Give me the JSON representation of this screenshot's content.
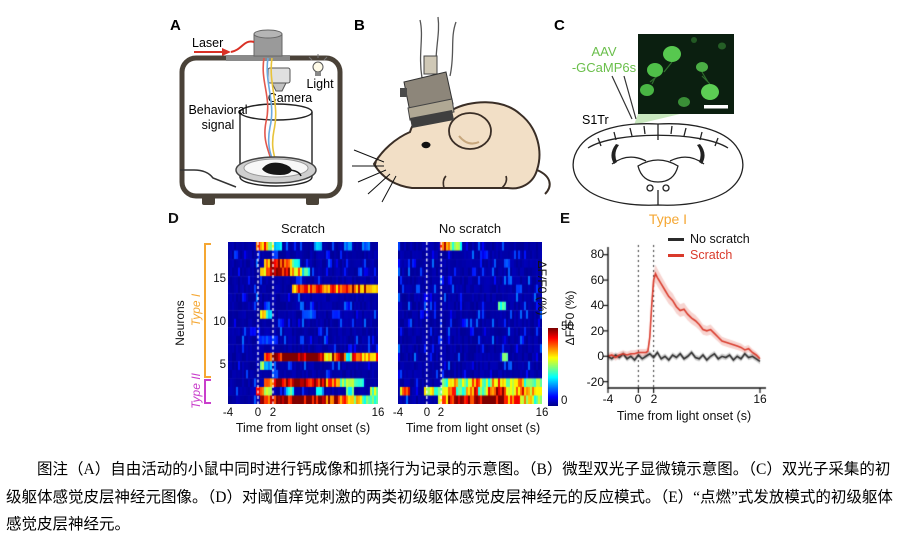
{
  "figure": {
    "panel_a": {
      "label": "A",
      "laser": "Laser",
      "light": "Light",
      "camera": "Camera",
      "behavioral_signal_line1": "Behavioral",
      "behavioral_signal_line2": "signal"
    },
    "panel_b": {
      "label": "B"
    },
    "panel_c": {
      "label": "C",
      "aav_line1": "AAV",
      "aav_line2": "-GCaMP6s",
      "region": "S1Tr"
    },
    "panel_d": {
      "label": "D"
    },
    "panel_e": {
      "label": "E"
    },
    "caption": "图注（A）自由活动的小鼠中同时进行钙成像和抓挠行为记录的示意图。（B）微型双光子显微镜示意图。（C）双光子采集的初级躯体感觉皮层神经元图像。（D）对阈值痒觉刺激的两类初级躯体感觉皮层神经元的反应模式。（E）“点燃”式发放模式的初级躯体感觉皮层神经元。"
  },
  "colors": {
    "type1_orange": "#F5A733",
    "type2_magenta": "#C93ECB",
    "scratch_red": "#D93A2B",
    "no_scratch_black": "#2B2B2B",
    "gcamp_green": "#6ABF4B",
    "laser_red": "#D93025",
    "heatmap_background_blue": "#00008F"
  },
  "chart_data": [
    {
      "type": "heatmap",
      "title": "Scratch",
      "xlabel": "Time from light onset (s)",
      "ylabel": "Neurons",
      "x_range": [
        -4,
        16
      ],
      "x_ticks": [
        -4,
        0,
        2,
        16
      ],
      "y_ticks": [
        15,
        10,
        5
      ],
      "n_rows": 19,
      "base": 2,
      "onset_lines": [
        0,
        2
      ],
      "colorbar": {
        "label": "ΔF/F0 (%)",
        "max": 50,
        "min": 0
      },
      "groups": [
        {
          "name": "Type I",
          "color": "#F5A733",
          "row_span": [
            4,
            19
          ]
        },
        {
          "name": "Type II",
          "color": "#C93ECB",
          "row_span": [
            1,
            3
          ]
        }
      ],
      "rows": [
        [
          [
            -0.2,
            1.2,
            40
          ],
          [
            1.2,
            2.2,
            28
          ],
          [
            2.2,
            3.2,
            16
          ],
          [
            7.5,
            8.5,
            14
          ],
          [
            11.5,
            12.5,
            13
          ],
          [
            14,
            15,
            12
          ]
        ],
        [
          [
            -3.2,
            -2.6,
            8
          ],
          [
            2,
            2.6,
            9
          ],
          [
            9,
            9.6,
            8
          ]
        ],
        [
          [
            0.8,
            1.6,
            32
          ],
          [
            1.6,
            3.4,
            46
          ],
          [
            3.4,
            4.6,
            38
          ],
          [
            4.6,
            5.6,
            22
          ]
        ],
        [
          [
            0.3,
            1.2,
            38
          ],
          [
            1.2,
            2.6,
            50
          ],
          [
            2.6,
            4.2,
            44
          ],
          [
            4.2,
            5.8,
            34
          ],
          [
            5.8,
            7,
            20
          ]
        ],
        [
          [
            5,
            5.5,
            8
          ]
        ],
        [
          [
            4.6,
            6.5,
            38
          ],
          [
            6.5,
            9,
            44
          ],
          [
            9,
            11,
            40
          ],
          [
            11,
            13,
            46
          ],
          [
            13,
            15,
            40
          ],
          [
            15,
            16,
            30
          ]
        ],
        [
          [
            -2,
            -1.5,
            7
          ]
        ],
        [
          [
            1,
            1.6,
            10
          ],
          [
            7,
            7.5,
            8
          ]
        ],
        [
          [
            0.3,
            1.1,
            30
          ],
          [
            1.1,
            1.9,
            20
          ],
          [
            6,
            7.5,
            10
          ],
          [
            10,
            11,
            9
          ]
        ],
        [
          [
            3,
            3.5,
            7
          ]
        ],
        [
          [
            -1,
            -0.5,
            7
          ],
          [
            8,
            8.6,
            9
          ]
        ],
        [
          [
            0,
            2.8,
            9
          ],
          [
            5.5,
            6.2,
            8
          ]
        ],
        [
          [
            12,
            12.6,
            7
          ]
        ],
        [
          [
            0.8,
            1.8,
            36
          ],
          [
            1.8,
            8.8,
            50
          ],
          [
            8.8,
            9.8,
            28
          ],
          [
            9.8,
            11.8,
            46
          ],
          [
            11.8,
            12.6,
            22
          ],
          [
            12.6,
            13.8,
            48
          ],
          [
            13.8,
            16,
            36
          ]
        ],
        [
          [
            0.2,
            0.9,
            26
          ],
          [
            0.9,
            1.8,
            14
          ],
          [
            4,
            4.6,
            10
          ]
        ],
        [
          [
            1.8,
            2.8,
            12
          ],
          [
            9,
            9.6,
            8
          ]
        ],
        [
          [
            0.9,
            2.4,
            40
          ],
          [
            2.4,
            9,
            50
          ],
          [
            9,
            11,
            36
          ],
          [
            11,
            13,
            26
          ],
          [
            13,
            14.2,
            18
          ]
        ],
        [
          [
            -0.2,
            0.9,
            36
          ],
          [
            0.9,
            2,
            28
          ],
          [
            3.8,
            4.8,
            20
          ],
          [
            7.8,
            8.8,
            16
          ],
          [
            11.8,
            12.8,
            22
          ],
          [
            14.8,
            16,
            26
          ]
        ],
        [
          [
            0.4,
            1.9,
            42
          ],
          [
            1.9,
            9.2,
            50
          ],
          [
            9.2,
            12,
            42
          ],
          [
            12,
            14,
            30
          ],
          [
            14,
            16,
            22
          ]
        ]
      ]
    },
    {
      "type": "heatmap",
      "title": "No scratch",
      "xlabel": "Time from light onset (s)",
      "x_range": [
        -4,
        16
      ],
      "x_ticks": [
        -4,
        0,
        2,
        16
      ],
      "n_rows": 19,
      "base": 2,
      "onset_lines": [
        0,
        2
      ],
      "rows": [
        [
          [
            1.8,
            3.2,
            40
          ],
          [
            3.2,
            4.8,
            24
          ]
        ],
        [
          [
            8,
            8.5,
            8
          ]
        ],
        [
          [
            -2,
            -1.5,
            7
          ],
          [
            11,
            11.6,
            9
          ]
        ],
        [],
        [
          [
            3,
            3.5,
            7
          ]
        ],
        [
          [
            12.5,
            13.2,
            10
          ]
        ],
        [],
        [
          [
            9.8,
            11,
            22
          ]
        ],
        [
          [
            -1,
            -0.5,
            7
          ]
        ],
        [
          [
            5,
            5.5,
            8
          ]
        ],
        [],
        [
          [
            1.5,
            2,
            8
          ],
          [
            13,
            13.6,
            9
          ]
        ],
        [],
        [
          [
            10.4,
            11.4,
            24
          ]
        ],
        [],
        [
          [
            2,
            2.5,
            8
          ]
        ],
        [
          [
            2,
            3,
            22
          ],
          [
            3,
            4.4,
            34
          ],
          [
            4.4,
            6,
            26
          ],
          [
            6,
            7.6,
            36
          ],
          [
            7.6,
            9,
            24
          ],
          [
            9,
            10.6,
            38
          ],
          [
            10.6,
            12,
            28
          ],
          [
            12,
            13.6,
            34
          ],
          [
            13.6,
            16,
            24
          ]
        ],
        [
          [
            -3.6,
            -2.4,
            38
          ],
          [
            -0.5,
            1,
            30
          ],
          [
            1,
            2.5,
            24
          ],
          [
            2.5,
            4,
            36
          ],
          [
            4,
            5.5,
            22
          ],
          [
            5.5,
            7,
            40
          ],
          [
            7,
            8.5,
            26
          ],
          [
            8.5,
            10,
            44
          ],
          [
            10,
            11,
            48
          ],
          [
            11,
            12.5,
            30
          ],
          [
            12.5,
            14,
            38
          ],
          [
            14,
            16,
            32
          ]
        ],
        [
          [
            1.6,
            3,
            36
          ],
          [
            3,
            6,
            48
          ],
          [
            6,
            11,
            50
          ],
          [
            11,
            13,
            40
          ],
          [
            13,
            14.5,
            32
          ],
          [
            14.5,
            16,
            24
          ]
        ]
      ]
    },
    {
      "type": "line",
      "title": "Type I",
      "xlabel": "Time from light onset (s)",
      "ylabel": "ΔF/F0 (%)",
      "xlim": [
        -4,
        16
      ],
      "ylim": [
        -25,
        90
      ],
      "x_ticks": [
        -4,
        0,
        2,
        16
      ],
      "y_ticks": [
        80,
        60,
        40,
        20,
        0,
        -20
      ],
      "onset_lines": [
        0,
        2
      ],
      "legend_position": "top-right",
      "series": [
        {
          "name": "No scratch",
          "color": "#2B2B2B",
          "band": [
            2.2,
            0
          ],
          "x": [
            -4,
            -3.5,
            -3,
            -2.5,
            -2,
            -1.5,
            -1,
            -0.5,
            0,
            0.5,
            1,
            1.5,
            2,
            2.5,
            3,
            3.5,
            4,
            4.5,
            5,
            5.5,
            6,
            6.5,
            7,
            7.5,
            8,
            8.5,
            9,
            9.5,
            10,
            10.5,
            11,
            11.5,
            12,
            12.5,
            13,
            13.5,
            14,
            14.5,
            15,
            15.5,
            16
          ],
          "y": [
            0,
            -2,
            1,
            -1,
            2,
            -2,
            0,
            -3,
            1,
            -2,
            0,
            2,
            -1,
            3,
            -2,
            0,
            -3,
            1,
            -1,
            2,
            -2,
            0,
            3,
            -1,
            -2,
            1,
            -3,
            0,
            2,
            -2,
            0,
            -1,
            1,
            -3,
            0,
            -2,
            2,
            -1,
            0,
            -2,
            -4
          ]
        },
        {
          "name": "Scratch",
          "color": "#D93A2B",
          "band": [
            2.5,
            0.07
          ],
          "x": [
            -4,
            -3.5,
            -3,
            -2.5,
            -2,
            -1.5,
            -1,
            -0.5,
            0,
            0.5,
            1,
            1.25,
            1.5,
            1.75,
            2,
            2.25,
            2.5,
            3,
            3.5,
            4,
            4.5,
            5,
            5.5,
            6,
            6.5,
            7,
            7.5,
            8,
            8.5,
            9,
            9.5,
            10,
            10.5,
            11,
            11.5,
            12,
            12.5,
            13,
            13.5,
            14,
            14.5,
            15,
            15.5,
            16
          ],
          "y": [
            0,
            1,
            -1,
            1,
            2,
            1,
            2,
            2,
            3,
            3,
            3,
            4,
            15,
            40,
            60,
            65,
            62,
            57,
            52,
            47,
            44,
            39,
            36,
            37,
            33,
            30,
            28,
            25,
            21,
            20,
            21,
            18,
            15,
            12,
            11,
            10,
            9,
            8,
            7,
            5,
            6,
            3,
            1,
            -2
          ]
        }
      ]
    }
  ]
}
